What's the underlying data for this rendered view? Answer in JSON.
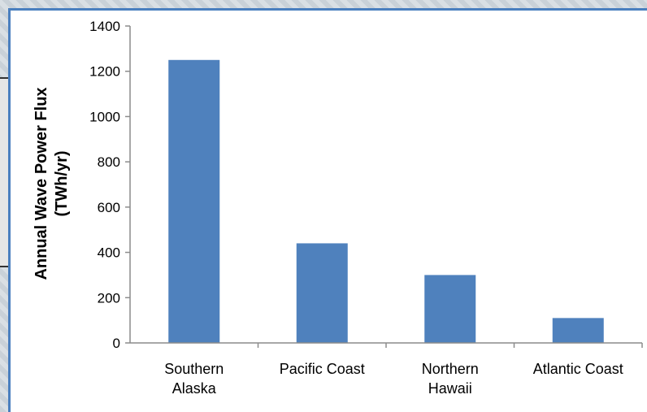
{
  "chart_data": {
    "type": "bar",
    "categories": [
      [
        "Southern",
        "Alaska"
      ],
      [
        "Pacific Coast"
      ],
      [
        "Northern",
        "Hawaii"
      ],
      [
        "Atlantic Coast"
      ]
    ],
    "values": [
      1250,
      440,
      300,
      110
    ],
    "title": "",
    "xlabel": "",
    "ylabel_lines": [
      "Annual Wave Power Flux",
      "(TWh/yr)"
    ],
    "ylim": [
      0,
      1400
    ],
    "yticks": [
      0,
      200,
      400,
      600,
      800,
      1000,
      1200,
      1400
    ],
    "grid": false,
    "legend": "none",
    "bar_color": "#4f81bd",
    "axis_color": "#8c8c8c"
  }
}
